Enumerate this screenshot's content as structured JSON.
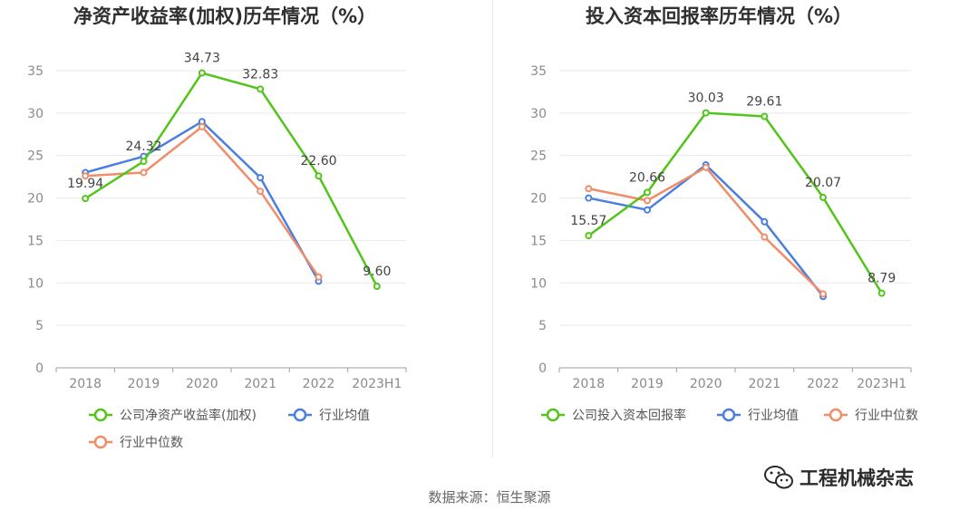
{
  "chart_data": [
    {
      "type": "line",
      "title": "净资产收益率(加权)历年情况（%）",
      "categories": [
        "2018",
        "2019",
        "2020",
        "2021",
        "2022",
        "2023H1"
      ],
      "y_ticks": [
        "0",
        "5",
        "10",
        "15",
        "20",
        "25",
        "30",
        "35"
      ],
      "ylim": [
        0,
        35
      ],
      "series": [
        {
          "name": "公司净资产收益率(加权)",
          "values": [
            19.94,
            24.32,
            34.73,
            32.83,
            22.6,
            9.6
          ],
          "color": "#52c41a",
          "labels": [
            "19.94",
            "24.32",
            "34.73",
            "32.83",
            "22.60",
            "9.60"
          ]
        },
        {
          "name": "行业均值",
          "values": [
            23.0,
            24.9,
            29.0,
            22.4,
            10.2,
            null
          ],
          "color": "#4a7ee0"
        },
        {
          "name": "行业中位数",
          "values": [
            22.6,
            23.0,
            28.4,
            20.8,
            10.7,
            null
          ],
          "color": "#f08d6a"
        }
      ],
      "legend": "bottom"
    },
    {
      "type": "line",
      "title": "投入资本回报率历年情况（%）",
      "categories": [
        "2018",
        "2019",
        "2020",
        "2021",
        "2022",
        "2023H1"
      ],
      "y_ticks": [
        "0",
        "5",
        "10",
        "15",
        "20",
        "25",
        "30",
        "35"
      ],
      "ylim": [
        0,
        35
      ],
      "series": [
        {
          "name": "公司投入资本回报率",
          "values": [
            15.57,
            20.66,
            30.03,
            29.61,
            20.07,
            8.79
          ],
          "color": "#52c41a",
          "labels": [
            "15.57",
            "20.66",
            "30.03",
            "29.61",
            "20.07",
            "8.79"
          ]
        },
        {
          "name": "行业均值",
          "values": [
            20.0,
            18.6,
            23.9,
            17.2,
            8.4,
            null
          ],
          "color": "#4a7ee0"
        },
        {
          "name": "行业中位数",
          "values": [
            21.1,
            19.7,
            23.6,
            15.4,
            8.7,
            null
          ],
          "color": "#f08d6a"
        }
      ],
      "legend": "bottom"
    }
  ],
  "footer": {
    "source": "数据来源：恒生聚源"
  },
  "watermark": {
    "text": "工程机械杂志",
    "icon": "wechat-icon"
  }
}
